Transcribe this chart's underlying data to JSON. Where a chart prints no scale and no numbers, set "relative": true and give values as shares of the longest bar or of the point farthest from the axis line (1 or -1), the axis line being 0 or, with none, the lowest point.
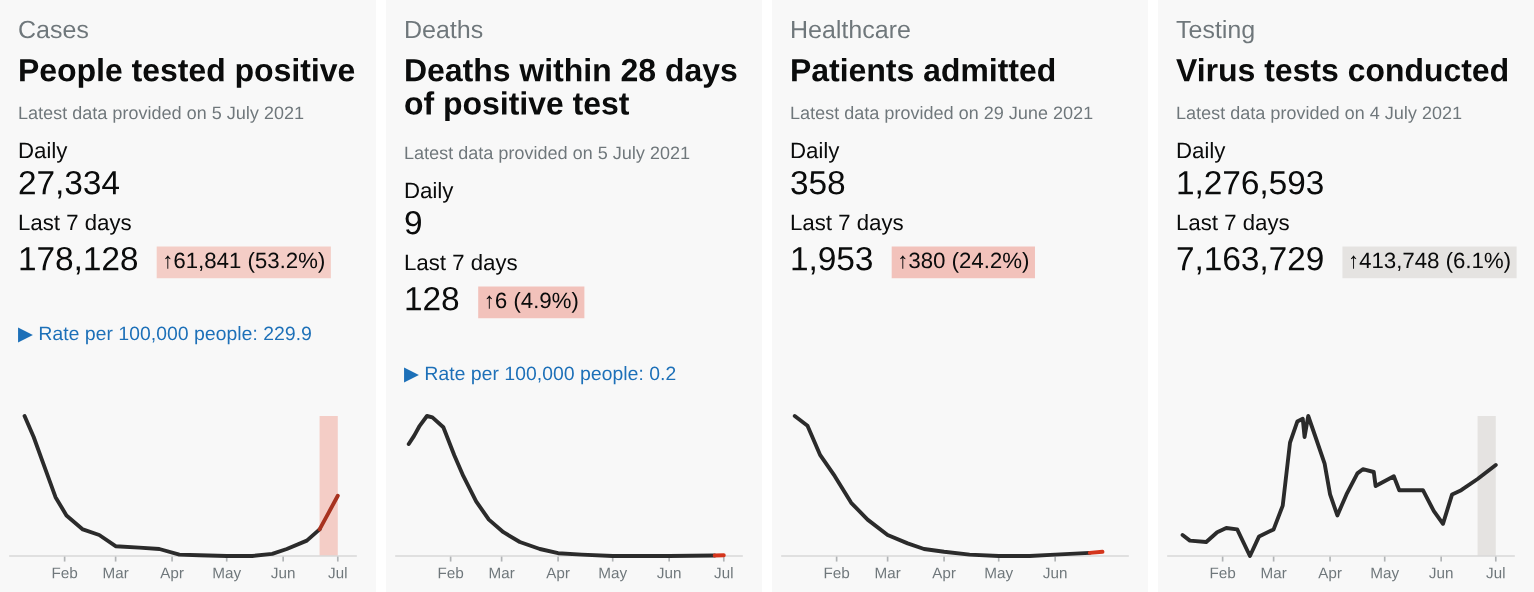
{
  "chart_data": [
    {
      "type": "line",
      "title": "People tested positive",
      "subtitle": "Latest data provided on 5 July 2021",
      "relative": true,
      "annotations": [
        "Cases",
        "Daily",
        "27,334",
        "Last 7 days",
        "178,128",
        "↑61,841 (53.2%)",
        "▶ Rate per 100,000 people: 229.9"
      ],
      "xticks": [
        {
          "value": "2021-02-01",
          "label": "Feb"
        },
        {
          "value": "2021-03-01",
          "label": "Mar"
        },
        {
          "value": "2021-04-01",
          "label": "Apr"
        },
        {
          "value": "2021-05-01",
          "label": "May"
        },
        {
          "value": "2021-06-01",
          "label": "Jun"
        },
        {
          "value": "2021-07-01",
          "label": "Jul"
        }
      ],
      "xlim": [
        "2021-01-02",
        "2021-07-11"
      ],
      "bands": [
        {
          "axis": "x",
          "from": "2021-06-21",
          "to": "2021-07-01",
          "color": "#f4cdc6"
        }
      ],
      "series": [
        {
          "color": "#2b2b2b",
          "x": [
            "2021-01-10",
            "2021-01-15",
            "2021-01-20",
            "2021-01-27",
            "2021-02-02",
            "2021-02-11",
            "2021-02-20",
            "2021-03-01",
            "2021-03-14",
            "2021-03-25",
            "2021-04-05",
            "2021-04-16",
            "2021-05-01",
            "2021-05-15",
            "2021-05-26",
            "2021-06-03",
            "2021-06-14",
            "2021-06-21"
          ],
          "values": [
            1.0,
            0.85,
            0.67,
            0.42,
            0.29,
            0.19,
            0.15,
            0.07,
            0.06,
            0.05,
            0.01,
            0.005,
            0,
            0,
            0.015,
            0.05,
            0.11,
            0.19
          ]
        },
        {
          "color": "#a8321f",
          "x": [
            "2021-06-21",
            "2021-06-26",
            "2021-07-01"
          ],
          "values": [
            0.19,
            0.31,
            0.43
          ]
        }
      ]
    },
    {
      "type": "line",
      "title": "Deaths within 28 days of positive test",
      "subtitle": "Latest data provided on 5 July 2021",
      "relative": true,
      "annotations": [
        "Deaths",
        "Daily",
        "9",
        "Last 7 days",
        "128",
        "↑6 (4.9%)",
        "▶ Rate per 100,000 people: 0.2"
      ],
      "xlim": [
        "2021-01-02",
        "2021-07-11"
      ],
      "xticks": [
        {
          "value": "2021-02-01",
          "label": "Feb"
        },
        {
          "value": "2021-03-01",
          "label": "Mar"
        },
        {
          "value": "2021-04-01",
          "label": "Apr"
        },
        {
          "value": "2021-05-01",
          "label": "May"
        },
        {
          "value": "2021-06-01",
          "label": "Jun"
        },
        {
          "value": "2021-07-01",
          "label": "Jul"
        }
      ],
      "series": [
        {
          "color": "#2b2b2b",
          "x": [
            "2021-01-09",
            "2021-01-12",
            "2021-01-15",
            "2021-01-19",
            "2021-01-22",
            "2021-01-28",
            "2021-02-03",
            "2021-02-08",
            "2021-02-15",
            "2021-02-22",
            "2021-03-02",
            "2021-03-11",
            "2021-03-22",
            "2021-04-01",
            "2021-04-14",
            "2021-05-01",
            "2021-06-01",
            "2021-06-26"
          ],
          "values": [
            0.8,
            0.86,
            0.93,
            1.0,
            0.99,
            0.92,
            0.72,
            0.57,
            0.39,
            0.26,
            0.17,
            0.1,
            0.05,
            0.02,
            0.01,
            0,
            0,
            0.004
          ]
        },
        {
          "color": "#d4351c",
          "x": [
            "2021-06-26",
            "2021-07-01"
          ],
          "values": [
            0.004,
            0.005
          ]
        }
      ]
    },
    {
      "type": "line",
      "title": "Patients admitted",
      "subtitle": "Latest data provided on 29 June 2021",
      "relative": true,
      "annotations": [
        "Healthcare",
        "Daily",
        "358",
        "Last 7 days",
        "1,953",
        "↑380 (24.2%)"
      ],
      "xlim": [
        "2021-01-02",
        "2021-07-11"
      ],
      "xticks": [
        {
          "value": "2021-02-01",
          "label": "Feb"
        },
        {
          "value": "2021-03-01",
          "label": "Mar"
        },
        {
          "value": "2021-04-01",
          "label": "Apr"
        },
        {
          "value": "2021-05-01",
          "label": "May"
        },
        {
          "value": "2021-06-01",
          "label": "Jun"
        }
      ],
      "series": [
        {
          "color": "#2b2b2b",
          "x": [
            "2021-01-09",
            "2021-01-16",
            "2021-01-23",
            "2021-01-31",
            "2021-02-09",
            "2021-02-18",
            "2021-03-01",
            "2021-03-12",
            "2021-03-21",
            "2021-04-01",
            "2021-04-15",
            "2021-05-01",
            "2021-05-18",
            "2021-06-01",
            "2021-06-20"
          ],
          "values": [
            1.0,
            0.93,
            0.72,
            0.57,
            0.38,
            0.26,
            0.15,
            0.09,
            0.05,
            0.03,
            0.01,
            0,
            0,
            0.01,
            0.022
          ]
        },
        {
          "color": "#d4351c",
          "x": [
            "2021-06-20",
            "2021-06-27"
          ],
          "values": [
            0.022,
            0.03
          ]
        }
      ]
    },
    {
      "type": "line",
      "title": "Virus tests conducted",
      "subtitle": "Latest data provided on 4 July 2021",
      "relative": true,
      "annotations": [
        "Testing",
        "Daily",
        "1,276,593",
        "Last 7 days",
        "7,163,729",
        "↑413,748 (6.1%)"
      ],
      "xticks": [
        {
          "value": "2021-02-01",
          "label": "Feb"
        },
        {
          "value": "2021-03-01",
          "label": "Mar"
        },
        {
          "value": "2021-04-01",
          "label": "Apr"
        },
        {
          "value": "2021-05-01",
          "label": "May"
        },
        {
          "value": "2021-06-01",
          "label": "Jun"
        },
        {
          "value": "2021-07-01",
          "label": "Jul"
        }
      ],
      "xlim": [
        "2021-01-02",
        "2021-07-11"
      ],
      "bands": [
        {
          "axis": "x",
          "from": "2021-06-21",
          "to": "2021-07-01",
          "color": "#e5e3e1"
        }
      ],
      "series": [
        {
          "color": "#2b2b2b",
          "x": [
            "2021-01-10",
            "2021-01-14",
            "2021-01-23",
            "2021-01-29",
            "2021-02-03",
            "2021-02-09",
            "2021-02-16",
            "2021-02-21",
            "2021-03-01",
            "2021-03-06",
            "2021-03-10",
            "2021-03-14",
            "2021-03-17",
            "2021-03-18",
            "2021-03-20",
            "2021-03-24",
            "2021-03-29",
            "2021-04-01",
            "2021-04-05",
            "2021-04-10",
            "2021-04-16",
            "2021-04-19",
            "2021-04-25",
            "2021-04-26",
            "2021-05-06",
            "2021-05-09",
            "2021-05-15",
            "2021-05-22",
            "2021-05-28",
            "2021-06-02",
            "2021-06-07",
            "2021-06-12",
            "2021-06-21",
            "2021-07-01"
          ],
          "values": [
            0.15,
            0.11,
            0.1,
            0.17,
            0.2,
            0.19,
            0,
            0.14,
            0.19,
            0.36,
            0.81,
            0.96,
            0.98,
            0.85,
            1.0,
            0.85,
            0.66,
            0.44,
            0.29,
            0.44,
            0.59,
            0.62,
            0.6,
            0.5,
            0.57,
            0.47,
            0.47,
            0.47,
            0.32,
            0.23,
            0.44,
            0.47,
            0.55,
            0.65
          ]
        }
      ]
    }
  ]
}
